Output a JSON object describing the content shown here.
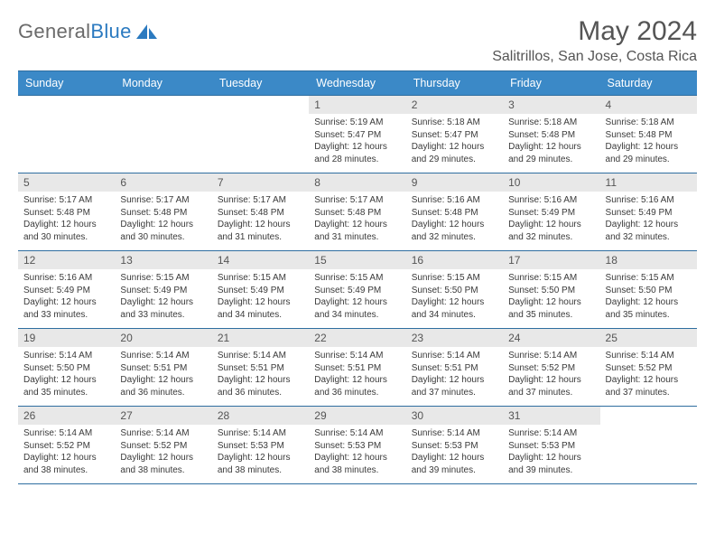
{
  "logo": {
    "text1": "General",
    "text2": "Blue"
  },
  "title": "May 2024",
  "subtitle": "Salitrillos, San Jose, Costa Rica",
  "columns": [
    "Sunday",
    "Monday",
    "Tuesday",
    "Wednesday",
    "Thursday",
    "Friday",
    "Saturday"
  ],
  "colors": {
    "headerBg": "#3b89c7",
    "headerText": "#ffffff",
    "border": "#2f6ea0",
    "dayBg": "#e8e8e8",
    "textColor": "#3a3a3a"
  },
  "weeks": [
    [
      {
        "n": "",
        "lines": [
          "",
          "",
          "",
          ""
        ]
      },
      {
        "n": "",
        "lines": [
          "",
          "",
          "",
          ""
        ]
      },
      {
        "n": "",
        "lines": [
          "",
          "",
          "",
          ""
        ]
      },
      {
        "n": "1",
        "lines": [
          "Sunrise: 5:19 AM",
          "Sunset: 5:47 PM",
          "Daylight: 12 hours",
          "and 28 minutes."
        ]
      },
      {
        "n": "2",
        "lines": [
          "Sunrise: 5:18 AM",
          "Sunset: 5:47 PM",
          "Daylight: 12 hours",
          "and 29 minutes."
        ]
      },
      {
        "n": "3",
        "lines": [
          "Sunrise: 5:18 AM",
          "Sunset: 5:48 PM",
          "Daylight: 12 hours",
          "and 29 minutes."
        ]
      },
      {
        "n": "4",
        "lines": [
          "Sunrise: 5:18 AM",
          "Sunset: 5:48 PM",
          "Daylight: 12 hours",
          "and 29 minutes."
        ]
      }
    ],
    [
      {
        "n": "5",
        "lines": [
          "Sunrise: 5:17 AM",
          "Sunset: 5:48 PM",
          "Daylight: 12 hours",
          "and 30 minutes."
        ]
      },
      {
        "n": "6",
        "lines": [
          "Sunrise: 5:17 AM",
          "Sunset: 5:48 PM",
          "Daylight: 12 hours",
          "and 30 minutes."
        ]
      },
      {
        "n": "7",
        "lines": [
          "Sunrise: 5:17 AM",
          "Sunset: 5:48 PM",
          "Daylight: 12 hours",
          "and 31 minutes."
        ]
      },
      {
        "n": "8",
        "lines": [
          "Sunrise: 5:17 AM",
          "Sunset: 5:48 PM",
          "Daylight: 12 hours",
          "and 31 minutes."
        ]
      },
      {
        "n": "9",
        "lines": [
          "Sunrise: 5:16 AM",
          "Sunset: 5:48 PM",
          "Daylight: 12 hours",
          "and 32 minutes."
        ]
      },
      {
        "n": "10",
        "lines": [
          "Sunrise: 5:16 AM",
          "Sunset: 5:49 PM",
          "Daylight: 12 hours",
          "and 32 minutes."
        ]
      },
      {
        "n": "11",
        "lines": [
          "Sunrise: 5:16 AM",
          "Sunset: 5:49 PM",
          "Daylight: 12 hours",
          "and 32 minutes."
        ]
      }
    ],
    [
      {
        "n": "12",
        "lines": [
          "Sunrise: 5:16 AM",
          "Sunset: 5:49 PM",
          "Daylight: 12 hours",
          "and 33 minutes."
        ]
      },
      {
        "n": "13",
        "lines": [
          "Sunrise: 5:15 AM",
          "Sunset: 5:49 PM",
          "Daylight: 12 hours",
          "and 33 minutes."
        ]
      },
      {
        "n": "14",
        "lines": [
          "Sunrise: 5:15 AM",
          "Sunset: 5:49 PM",
          "Daylight: 12 hours",
          "and 34 minutes."
        ]
      },
      {
        "n": "15",
        "lines": [
          "Sunrise: 5:15 AM",
          "Sunset: 5:49 PM",
          "Daylight: 12 hours",
          "and 34 minutes."
        ]
      },
      {
        "n": "16",
        "lines": [
          "Sunrise: 5:15 AM",
          "Sunset: 5:50 PM",
          "Daylight: 12 hours",
          "and 34 minutes."
        ]
      },
      {
        "n": "17",
        "lines": [
          "Sunrise: 5:15 AM",
          "Sunset: 5:50 PM",
          "Daylight: 12 hours",
          "and 35 minutes."
        ]
      },
      {
        "n": "18",
        "lines": [
          "Sunrise: 5:15 AM",
          "Sunset: 5:50 PM",
          "Daylight: 12 hours",
          "and 35 minutes."
        ]
      }
    ],
    [
      {
        "n": "19",
        "lines": [
          "Sunrise: 5:14 AM",
          "Sunset: 5:50 PM",
          "Daylight: 12 hours",
          "and 35 minutes."
        ]
      },
      {
        "n": "20",
        "lines": [
          "Sunrise: 5:14 AM",
          "Sunset: 5:51 PM",
          "Daylight: 12 hours",
          "and 36 minutes."
        ]
      },
      {
        "n": "21",
        "lines": [
          "Sunrise: 5:14 AM",
          "Sunset: 5:51 PM",
          "Daylight: 12 hours",
          "and 36 minutes."
        ]
      },
      {
        "n": "22",
        "lines": [
          "Sunrise: 5:14 AM",
          "Sunset: 5:51 PM",
          "Daylight: 12 hours",
          "and 36 minutes."
        ]
      },
      {
        "n": "23",
        "lines": [
          "Sunrise: 5:14 AM",
          "Sunset: 5:51 PM",
          "Daylight: 12 hours",
          "and 37 minutes."
        ]
      },
      {
        "n": "24",
        "lines": [
          "Sunrise: 5:14 AM",
          "Sunset: 5:52 PM",
          "Daylight: 12 hours",
          "and 37 minutes."
        ]
      },
      {
        "n": "25",
        "lines": [
          "Sunrise: 5:14 AM",
          "Sunset: 5:52 PM",
          "Daylight: 12 hours",
          "and 37 minutes."
        ]
      }
    ],
    [
      {
        "n": "26",
        "lines": [
          "Sunrise: 5:14 AM",
          "Sunset: 5:52 PM",
          "Daylight: 12 hours",
          "and 38 minutes."
        ]
      },
      {
        "n": "27",
        "lines": [
          "Sunrise: 5:14 AM",
          "Sunset: 5:52 PM",
          "Daylight: 12 hours",
          "and 38 minutes."
        ]
      },
      {
        "n": "28",
        "lines": [
          "Sunrise: 5:14 AM",
          "Sunset: 5:53 PM",
          "Daylight: 12 hours",
          "and 38 minutes."
        ]
      },
      {
        "n": "29",
        "lines": [
          "Sunrise: 5:14 AM",
          "Sunset: 5:53 PM",
          "Daylight: 12 hours",
          "and 38 minutes."
        ]
      },
      {
        "n": "30",
        "lines": [
          "Sunrise: 5:14 AM",
          "Sunset: 5:53 PM",
          "Daylight: 12 hours",
          "and 39 minutes."
        ]
      },
      {
        "n": "31",
        "lines": [
          "Sunrise: 5:14 AM",
          "Sunset: 5:53 PM",
          "Daylight: 12 hours",
          "and 39 minutes."
        ]
      },
      {
        "n": "",
        "lines": [
          "",
          "",
          "",
          ""
        ]
      }
    ]
  ]
}
